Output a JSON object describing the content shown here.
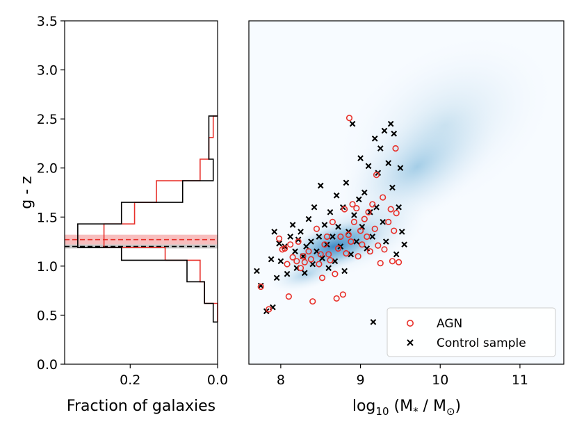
{
  "chart_data": [
    {
      "type": "histogram",
      "orientation": "horizontal",
      "xlabel": "Fraction of galaxies",
      "ylabel": "g - z",
      "xlim": [
        0.35,
        0.0
      ],
      "ylim": [
        0.0,
        3.5
      ],
      "xtick_labels": [
        "0.2",
        "0.0"
      ],
      "xticks": [
        0.2,
        0.0
      ],
      "ytick_labels": [
        "0.0",
        "0.5",
        "1.0",
        "1.5",
        "2.0",
        "2.5",
        "3.0",
        "3.5"
      ],
      "yticks": [
        0.0,
        0.5,
        1.0,
        1.5,
        2.0,
        2.5,
        3.0,
        3.5
      ],
      "bin_edges": [
        0.43,
        0.62,
        0.84,
        1.06,
        1.19,
        1.43,
        1.65,
        1.87,
        2.09,
        2.31,
        2.53
      ],
      "series": [
        {
          "name": "AGN",
          "color": "#e8302a",
          "values": [
            0.0,
            0.03,
            0.04,
            0.12,
            0.26,
            0.19,
            0.14,
            0.04,
            0.02,
            0.01
          ]
        },
        {
          "name": "Control sample",
          "color": "#000000",
          "values": [
            0.01,
            0.03,
            0.07,
            0.22,
            0.32,
            0.22,
            0.08,
            0.01,
            0.02,
            0.02
          ]
        }
      ],
      "median_lines": [
        {
          "name": "AGN median",
          "value": 1.27,
          "band": [
            1.22,
            1.32
          ],
          "color": "#e8302a",
          "band_color": "#f4a3a3"
        },
        {
          "name": "Control median",
          "value": 1.2,
          "band": [
            1.18,
            1.22
          ],
          "color": "#000000",
          "band_color": "#b0b0b0"
        }
      ]
    },
    {
      "type": "scatter",
      "xlabel_base": "log",
      "xlabel_sub": "10",
      "xlabel_rest": " (M",
      "xlabel_sub2": "*",
      "xlabel_mid": " / M",
      "xlabel_sub3": "⊙",
      "xlabel_end": ")",
      "xlim": [
        7.6,
        11.55
      ],
      "ylim": [
        0.0,
        3.5
      ],
      "xtick_labels": [
        "8",
        "9",
        "10",
        "11"
      ],
      "xticks": [
        8,
        9,
        10,
        11
      ],
      "background": "2D density histogram of parent galaxy sample (blues)",
      "legend_location": "lower right",
      "series": [
        {
          "name": "AGN",
          "marker": "open-circle",
          "color": "#e8302a",
          "points": [
            [
              7.75,
              0.79
            ],
            [
              7.85,
              0.56
            ],
            [
              7.98,
              1.28
            ],
            [
              8.02,
              1.17
            ],
            [
              8.05,
              1.18
            ],
            [
              8.08,
              1.02
            ],
            [
              8.1,
              0.69
            ],
            [
              8.12,
              1.22
            ],
            [
              8.15,
              1.09
            ],
            [
              8.2,
              1.05
            ],
            [
              8.22,
              1.25
            ],
            [
              8.25,
              0.98
            ],
            [
              8.28,
              1.1
            ],
            [
              8.3,
              1.04
            ],
            [
              8.35,
              1.15
            ],
            [
              8.38,
              1.07
            ],
            [
              8.4,
              0.64
            ],
            [
              8.45,
              1.38
            ],
            [
              8.48,
              1.02
            ],
            [
              8.5,
              1.12
            ],
            [
              8.52,
              0.88
            ],
            [
              8.55,
              1.22
            ],
            [
              8.58,
              1.3
            ],
            [
              8.6,
              1.12
            ],
            [
              8.62,
              1.06
            ],
            [
              8.65,
              1.45
            ],
            [
              8.68,
              0.92
            ],
            [
              8.7,
              0.67
            ],
            [
              8.72,
              1.18
            ],
            [
              8.75,
              1.3
            ],
            [
              8.78,
              0.71
            ],
            [
              8.8,
              1.58
            ],
            [
              8.82,
              1.13
            ],
            [
              8.85,
              1.32
            ],
            [
              8.86,
              2.51
            ],
            [
              8.88,
              1.25
            ],
            [
              8.9,
              1.63
            ],
            [
              8.92,
              1.45
            ],
            [
              8.95,
              1.59
            ],
            [
              8.97,
              1.1
            ],
            [
              9.0,
              1.36
            ],
            [
              9.02,
              1.22
            ],
            [
              9.05,
              1.48
            ],
            [
              9.08,
              1.3
            ],
            [
              9.1,
              1.55
            ],
            [
              9.12,
              1.15
            ],
            [
              9.15,
              1.63
            ],
            [
              9.18,
              1.38
            ],
            [
              9.2,
              1.93
            ],
            [
              9.22,
              1.21
            ],
            [
              9.25,
              1.03
            ],
            [
              9.28,
              1.7
            ],
            [
              9.3,
              1.17
            ],
            [
              9.35,
              1.45
            ],
            [
              9.38,
              1.58
            ],
            [
              9.4,
              1.05
            ],
            [
              9.42,
              1.36
            ],
            [
              9.44,
              2.2
            ],
            [
              9.45,
              1.54
            ],
            [
              9.48,
              1.04
            ]
          ]
        },
        {
          "name": "Control sample",
          "marker": "x",
          "color": "#000000",
          "points": [
            [
              7.7,
              0.95
            ],
            [
              7.75,
              0.8
            ],
            [
              7.82,
              0.54
            ],
            [
              7.88,
              1.07
            ],
            [
              7.9,
              0.58
            ],
            [
              7.92,
              1.35
            ],
            [
              7.95,
              0.88
            ],
            [
              7.98,
              1.23
            ],
            [
              8.0,
              1.05
            ],
            [
              8.05,
              1.2
            ],
            [
              8.08,
              0.92
            ],
            [
              8.12,
              1.3
            ],
            [
              8.15,
              1.42
            ],
            [
              8.18,
              1.15
            ],
            [
              8.2,
              0.98
            ],
            [
              8.22,
              1.27
            ],
            [
              8.25,
              1.35
            ],
            [
              8.28,
              1.1
            ],
            [
              8.3,
              0.93
            ],
            [
              8.32,
              1.2
            ],
            [
              8.35,
              1.48
            ],
            [
              8.38,
              1.25
            ],
            [
              8.4,
              1.02
            ],
            [
              8.42,
              1.6
            ],
            [
              8.45,
              1.15
            ],
            [
              8.48,
              1.3
            ],
            [
              8.5,
              1.82
            ],
            [
              8.52,
              1.08
            ],
            [
              8.55,
              1.42
            ],
            [
              8.58,
              1.22
            ],
            [
              8.6,
              0.98
            ],
            [
              8.62,
              1.55
            ],
            [
              8.65,
              1.3
            ],
            [
              8.68,
              1.05
            ],
            [
              8.7,
              1.72
            ],
            [
              8.72,
              1.4
            ],
            [
              8.75,
              1.2
            ],
            [
              8.78,
              1.6
            ],
            [
              8.8,
              0.95
            ],
            [
              8.82,
              1.85
            ],
            [
              8.85,
              1.35
            ],
            [
              8.88,
              1.12
            ],
            [
              8.9,
              2.45
            ],
            [
              8.92,
              1.52
            ],
            [
              8.95,
              1.25
            ],
            [
              8.98,
              1.68
            ],
            [
              9.0,
              2.1
            ],
            [
              9.02,
              1.4
            ],
            [
              9.05,
              1.75
            ],
            [
              9.08,
              1.18
            ],
            [
              9.1,
              2.02
            ],
            [
              9.12,
              1.55
            ],
            [
              9.15,
              1.3
            ],
            [
              9.16,
              0.43
            ],
            [
              9.18,
              2.3
            ],
            [
              9.2,
              1.6
            ],
            [
              9.22,
              1.95
            ],
            [
              9.25,
              2.2
            ],
            [
              9.28,
              1.45
            ],
            [
              9.3,
              2.38
            ],
            [
              9.32,
              1.25
            ],
            [
              9.35,
              2.05
            ],
            [
              9.38,
              2.45
            ],
            [
              9.4,
              1.8
            ],
            [
              9.42,
              2.35
            ],
            [
              9.45,
              1.12
            ],
            [
              9.48,
              1.6
            ],
            [
              9.5,
              2.0
            ],
            [
              9.52,
              1.35
            ],
            [
              9.55,
              1.22
            ]
          ]
        }
      ]
    }
  ]
}
